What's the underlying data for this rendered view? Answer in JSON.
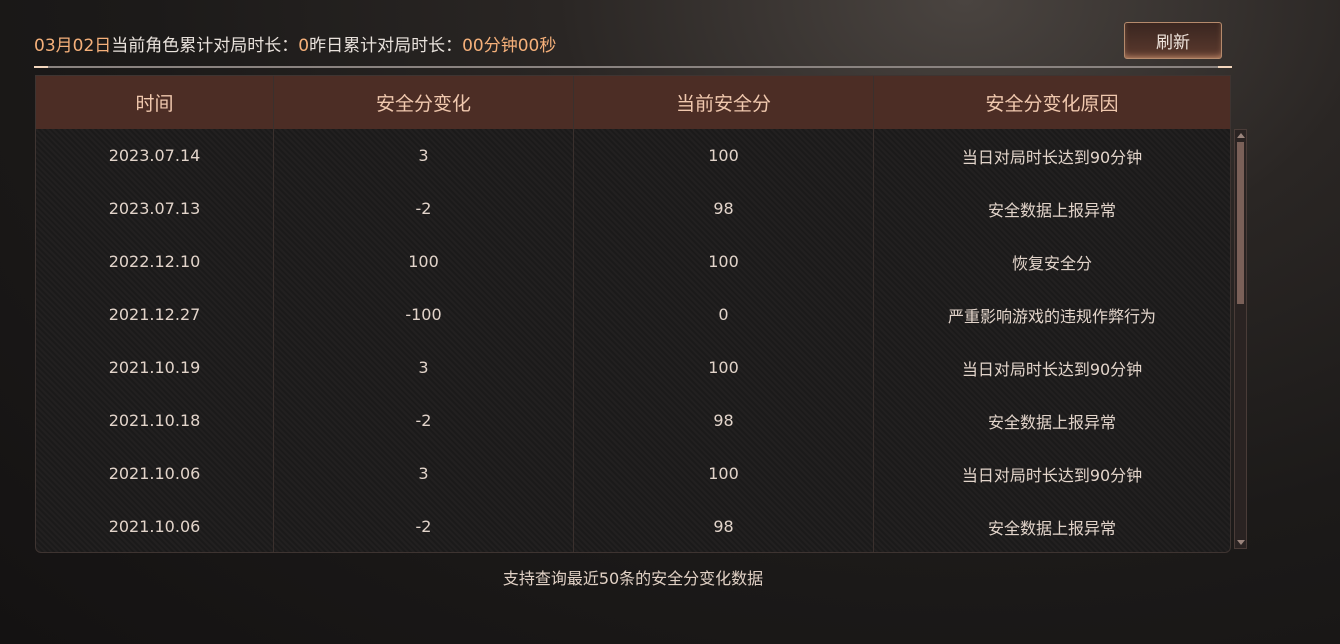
{
  "header": {
    "date": "03月02日",
    "label1": "当前角色累计对局时长：",
    "value1": "0",
    "label2": "昨日累计对局时长：",
    "value2": "00分钟00秒",
    "refresh_label": "刷新"
  },
  "table": {
    "columns": [
      "时间",
      "安全分变化",
      "当前安全分",
      "安全分变化原因"
    ],
    "rows": [
      [
        "2023.07.14",
        "3",
        "100",
        "当日对局时长达到90分钟"
      ],
      [
        "2023.07.13",
        "-2",
        "98",
        "安全数据上报异常"
      ],
      [
        "2022.12.10",
        "100",
        "100",
        "恢复安全分"
      ],
      [
        "2021.12.27",
        "-100",
        "0",
        "严重影响游戏的违规作弊行为"
      ],
      [
        "2021.10.19",
        "3",
        "100",
        "当日对局时长达到90分钟"
      ],
      [
        "2021.10.18",
        "-2",
        "98",
        "安全数据上报异常"
      ],
      [
        "2021.10.06",
        "3",
        "100",
        "当日对局时长达到90分钟"
      ],
      [
        "2021.10.06",
        "-2",
        "98",
        "安全数据上报异常"
      ]
    ]
  },
  "footer": "支持查询最近50条的安全分变化数据",
  "colors": {
    "accent": "#f5b07a",
    "header_bg": "#4c2d25"
  }
}
